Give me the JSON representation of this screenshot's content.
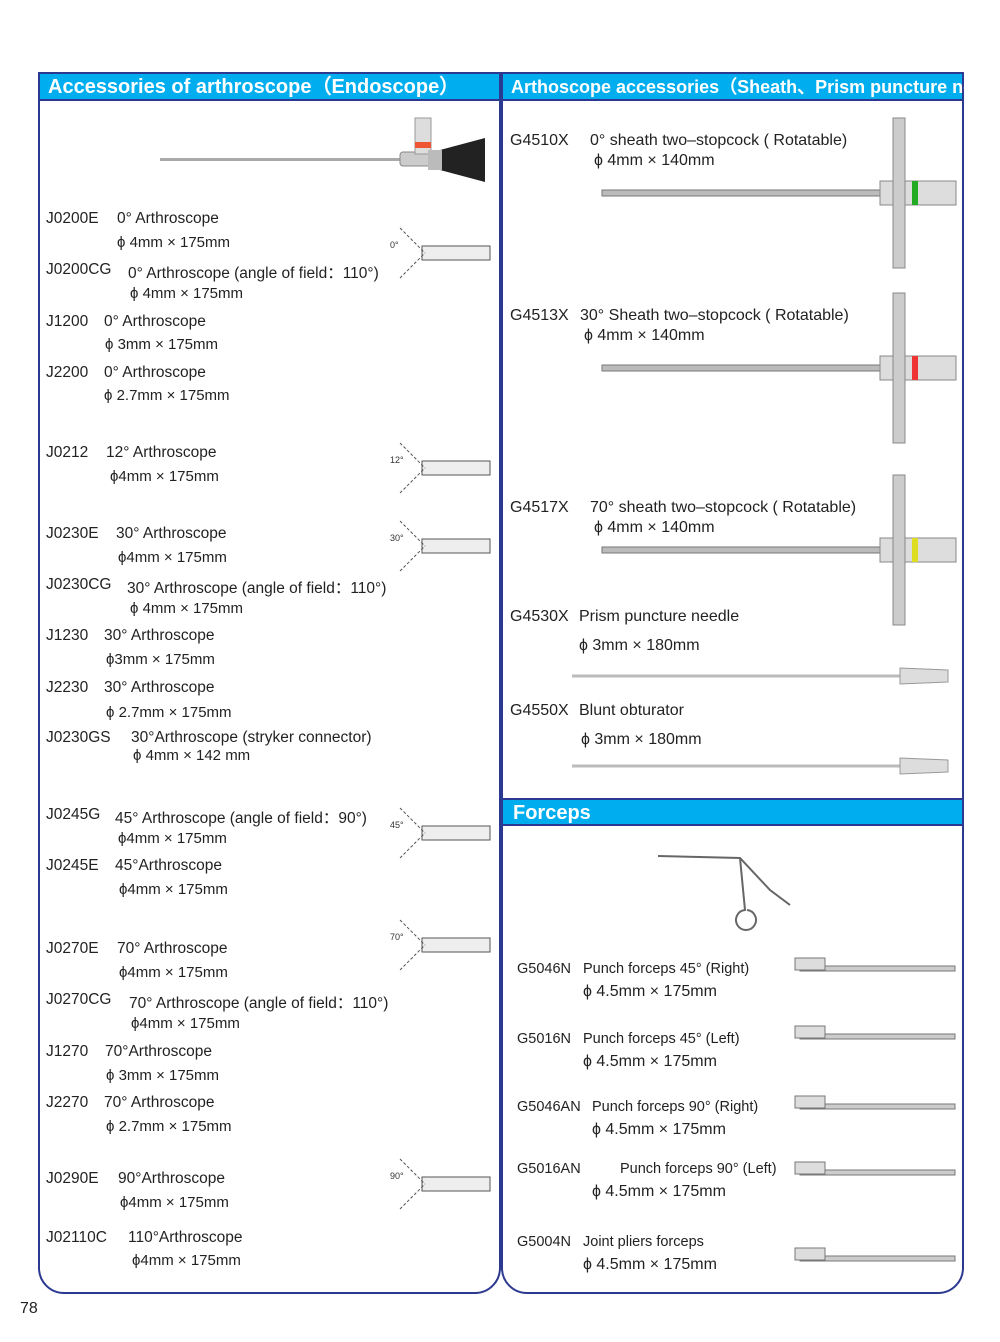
{
  "left": {
    "title": "Accessories of arthroscope（Endoscope）",
    "items": [
      {
        "code": "J0200E",
        "name": "0° Arthroscope",
        "size": "ϕ 4mm × 175mm"
      },
      {
        "code": "J0200CG",
        "name": "0° Arthroscope (angle of field：110°)",
        "size": "ϕ 4mm × 175mm"
      },
      {
        "code": "J1200",
        "name": "0° Arthroscope",
        "size": "ϕ 3mm × 175mm"
      },
      {
        "code": "J2200",
        "name": "0° Arthroscope",
        "size": "ϕ 2.7mm × 175mm"
      },
      {
        "code": "J0212",
        "name": "12° Arthroscope",
        "size": "ϕ4mm × 175mm"
      },
      {
        "code": "J0230E",
        "name": "30° Arthroscope",
        "size": "ϕ4mm × 175mm"
      },
      {
        "code": "J0230CG",
        "name": "30° Arthroscope (angle of field：110°)",
        "size": "ϕ 4mm × 175mm"
      },
      {
        "code": "J1230",
        "name": "30° Arthroscope",
        "size": "ϕ3mm × 175mm"
      },
      {
        "code": "J2230",
        "name": "30° Arthroscope",
        "size": "ϕ 2.7mm × 175mm"
      },
      {
        "code": "J0230GS",
        "name": "30°Arthroscope (stryker connector)",
        "size": "ϕ 4mm × 142 mm"
      },
      {
        "code": "J0245G",
        "name": "45° Arthroscope (angle of field：90°)",
        "size": "ϕ4mm × 175mm"
      },
      {
        "code": "J0245E",
        "name": "45°Arthroscope",
        "size": "ϕ4mm × 175mm"
      },
      {
        "code": "J0270E",
        "name": "70° Arthroscope",
        "size": "ϕ4mm × 175mm"
      },
      {
        "code": "J0270CG",
        "name": "70° Arthroscope (angle of field：110°)",
        "size": "ϕ4mm × 175mm"
      },
      {
        "code": "J1270",
        "name": "70°Arthroscope",
        "size": "ϕ 3mm × 175mm"
      },
      {
        "code": "J2270",
        "name": "70° Arthroscope",
        "size": "ϕ 2.7mm × 175mm"
      },
      {
        "code": "J0290E",
        "name": "90°Arthroscope",
        "size": "ϕ4mm × 175mm"
      },
      {
        "code": "J02110C",
        "name": "110°Arthroscope",
        "size": "ϕ4mm × 175mm"
      }
    ],
    "angle_labels": [
      "0°",
      "12°",
      "30°",
      "45°",
      "70°",
      "90°"
    ]
  },
  "right": {
    "title": "Arthoscope accessories（Sheath、Prism puncture needle）",
    "items": [
      {
        "code": "G4510X",
        "name": "0°  sheath two–stopcock ( Rotatable)",
        "size": "ϕ 4mm × 140mm"
      },
      {
        "code": "G4513X",
        "name": "30°  Sheath two–stopcock ( Rotatable)",
        "size": "ϕ 4mm × 140mm"
      },
      {
        "code": "G4517X",
        "name": "70°  sheath two–stopcock ( Rotatable)",
        "size": "ϕ 4mm × 140mm"
      },
      {
        "code": "G4530X",
        "name": "Prism puncture needle",
        "size": "ϕ 3mm × 180mm"
      },
      {
        "code": "G4550X",
        "name": "Blunt obturator",
        "size": "ϕ 3mm × 180mm"
      }
    ]
  },
  "forceps": {
    "title": "Forceps",
    "items": [
      {
        "code": "G5046N",
        "name": "Punch forceps 45°  (Right)",
        "size": "ϕ 4.5mm × 175mm"
      },
      {
        "code": "G5016N",
        "name": "Punch forceps 45°  (Left)",
        "size": "ϕ 4.5mm × 175mm"
      },
      {
        "code": "G5046AN",
        "name": "Punch forceps 90°  (Right)",
        "size": "ϕ 4.5mm × 175mm"
      },
      {
        "code": "G5016AN",
        "name": "Punch forceps 90°  (Left)",
        "size": "ϕ 4.5mm × 175mm"
      },
      {
        "code": "G5004N",
        "name": "Joint pliers forceps",
        "size": "ϕ 4.5mm × 175mm"
      }
    ]
  },
  "page_number": "78",
  "colors": {
    "header": "#00aeef",
    "border": "#2b3990"
  }
}
